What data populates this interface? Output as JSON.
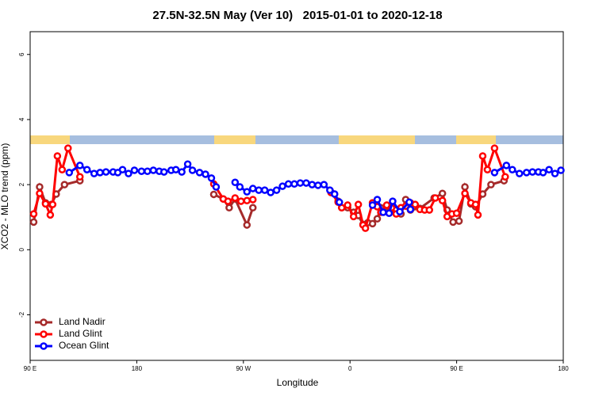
{
  "chart_data": {
    "type": "line",
    "title": "27.5N-32.5N May (Ver 10)   2015-01-01 to 2020-12-18",
    "x_label": "Longitude",
    "y_label": "XCO2 - MLO trend (ppm)",
    "xlim": [
      90,
      540
    ],
    "ylim": [
      -3.4,
      6.7
    ],
    "xticks": [
      {
        "value": 90,
        "label": "90 E"
      },
      180,
      {
        "value": 270,
        "label": "90 W"
      },
      {
        "value": 360,
        "label": "0"
      },
      {
        "value": 450,
        "label": "90 E"
      },
      {
        "value": 540,
        "label": "180"
      }
    ],
    "yticks": [
      -2,
      0,
      2,
      4,
      6
    ],
    "legend": "bottom-left",
    "series": [
      {
        "name": "Land Nadir",
        "color": "#a52a2a",
        "x": [
          93,
          98,
          103,
          108,
          112,
          119,
          132,
          null,
          245,
          253,
          258,
          263,
          273,
          278,
          null,
          344,
          350,
          353,
          358,
          363,
          367,
          371,
          375,
          379,
          383,
          386,
          391,
          395,
          399,
          403,
          407,
          411,
          419,
          431,
          438,
          442,
          447,
          452,
          457,
          462,
          466,
          472,
          479,
          490
        ],
        "values": [
          0.85,
          1.93,
          1.44,
          1.39,
          1.71,
          2.0,
          2.12,
          null,
          1.7,
          1.56,
          1.29,
          1.56,
          0.76,
          1.29,
          null,
          1.76,
          1.49,
          1.29,
          1.29,
          1.15,
          1.05,
          0.78,
          0.83,
          0.8,
          0.95,
          1.29,
          1.32,
          1.24,
          1.22,
          1.1,
          1.54,
          1.22,
          1.27,
          1.59,
          1.73,
          1.22,
          0.85,
          0.88,
          1.93,
          1.41,
          1.32,
          1.71,
          2.0,
          2.12
        ]
      },
      {
        "name": "Land Glint",
        "color": "#ff0000",
        "x": [
          93,
          98,
          103,
          107,
          109,
          113,
          117,
          122,
          132,
          null,
          245,
          253,
          257,
          263,
          268,
          273,
          278,
          null,
          344,
          350,
          353,
          358,
          363,
          367,
          371,
          373,
          379,
          383,
          386,
          391,
          395,
          399,
          403,
          407,
          411,
          415,
          419,
          423,
          427,
          432,
          438,
          442,
          446,
          450,
          457,
          462,
          466,
          468,
          472,
          476,
          482,
          491
        ],
        "values": [
          1.1,
          1.73,
          1.41,
          1.07,
          1.39,
          2.88,
          2.46,
          3.12,
          2.24,
          null,
          2.02,
          1.56,
          1.49,
          1.59,
          1.49,
          1.51,
          1.54,
          null,
          1.76,
          1.46,
          1.29,
          1.37,
          1.02,
          1.39,
          0.76,
          0.66,
          1.44,
          1.32,
          1.15,
          1.37,
          1.29,
          1.1,
          1.29,
          1.34,
          1.44,
          1.39,
          1.24,
          1.22,
          1.22,
          1.59,
          1.51,
          1.02,
          1.1,
          1.12,
          1.73,
          1.44,
          1.39,
          1.07,
          2.88,
          2.46,
          3.12,
          2.24
        ]
      },
      {
        "name": "Ocean Glint",
        "color": "#0000ff",
        "x": [
          123,
          132,
          138,
          144,
          149,
          154,
          160,
          164,
          168,
          173,
          178,
          184,
          189,
          194,
          199,
          203,
          209,
          213,
          218,
          223,
          227,
          233,
          238,
          243,
          247,
          null,
          263,
          267,
          273,
          278,
          283,
          288,
          293,
          298,
          303,
          308,
          313,
          318,
          323,
          328,
          333,
          338,
          343,
          347,
          351,
          null,
          379,
          383,
          388,
          393,
          396,
          402,
          410,
          411,
          null,
          482,
          492,
          497,
          503,
          509,
          514,
          519,
          523,
          528,
          533,
          538
        ],
        "values": [
          2.37,
          2.59,
          2.46,
          2.34,
          2.37,
          2.39,
          2.39,
          2.37,
          2.46,
          2.34,
          2.44,
          2.41,
          2.41,
          2.44,
          2.41,
          2.39,
          2.44,
          2.46,
          2.39,
          2.63,
          2.44,
          2.37,
          2.32,
          2.2,
          1.93,
          null,
          2.07,
          1.93,
          1.78,
          1.88,
          1.83,
          1.83,
          1.76,
          1.83,
          1.95,
          2.02,
          2.02,
          2.05,
          2.05,
          2.0,
          1.98,
          2.0,
          1.83,
          1.71,
          1.46,
          null,
          1.37,
          1.54,
          1.15,
          1.12,
          1.49,
          1.17,
          1.46,
          1.24,
          null,
          2.37,
          2.59,
          2.46,
          2.34,
          2.37,
          2.39,
          2.39,
          2.37,
          2.46,
          2.34,
          2.44
        ]
      }
    ]
  }
}
